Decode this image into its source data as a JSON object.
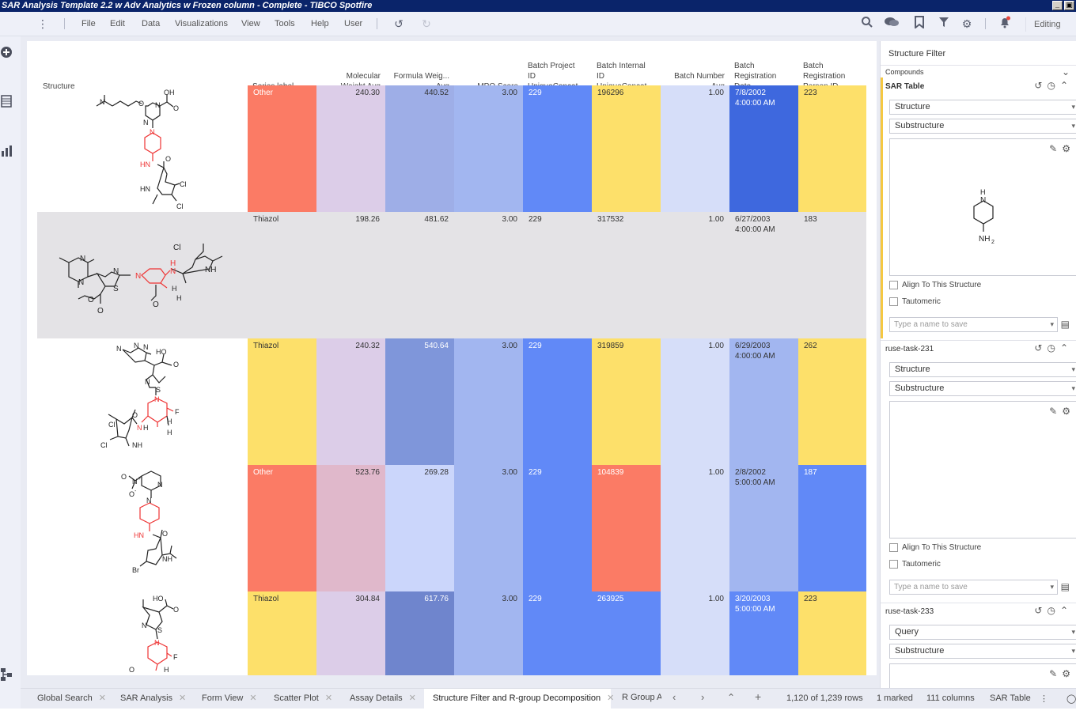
{
  "window": {
    "title": "SAR Analysis Template 2.2 w Adv Analytics w Frozen column - Complete - TIBCO Spotfire",
    "min_icon": "minimize-icon",
    "restore_icon": "restore-icon"
  },
  "menu": {
    "items": [
      "File",
      "Edit",
      "Data",
      "Visualizations",
      "View",
      "Tools",
      "Help",
      "User"
    ],
    "mode": "Editing"
  },
  "table": {
    "columns": [
      {
        "key": "structure",
        "label": [
          "Structure"
        ]
      },
      {
        "key": "series",
        "label": [
          "Series label"
        ]
      },
      {
        "key": "mw",
        "label": [
          "Molecular",
          "Weight  Avg"
        ]
      },
      {
        "key": "fw",
        "label": [
          "Formula Weig...",
          "Avg"
        ]
      },
      {
        "key": "mpo",
        "label": [
          "MPO Score"
        ]
      },
      {
        "key": "bpid",
        "label": [
          "Batch Project",
          "ID",
          "UniqueConcat..."
        ]
      },
      {
        "key": "biid",
        "label": [
          "Batch Internal",
          "ID",
          "UniqueConcat..."
        ]
      },
      {
        "key": "bn",
        "label": [
          "Batch Number",
          "Avg"
        ]
      },
      {
        "key": "brd",
        "label": [
          "Batch",
          "Registration",
          "Date"
        ]
      },
      {
        "key": "brp",
        "label": [
          "Batch",
          "Registration",
          "Person ID"
        ]
      }
    ],
    "rows": [
      {
        "series": "Other",
        "mw": "240.30",
        "fw": "440.52",
        "mpo": "3.00",
        "bpid": "229",
        "biid": "196296",
        "bn": "1.00",
        "date1": "7/8/2002",
        "date2": "4:00:00 AM",
        "person": "223"
      },
      {
        "series": "Thiazol",
        "mw": "198.26",
        "fw": "481.62",
        "mpo": "3.00",
        "bpid": "229",
        "biid": "317532",
        "bn": "1.00",
        "date1": "6/27/2003",
        "date2": "4:00:00 AM",
        "person": "183"
      },
      {
        "series": "Thiazol",
        "mw": "240.32",
        "fw": "540.64",
        "mpo": "3.00",
        "bpid": "229",
        "biid": "319859",
        "bn": "1.00",
        "date1": "6/29/2003",
        "date2": "4:00:00 AM",
        "person": "262"
      },
      {
        "series": "Other",
        "mw": "523.76",
        "fw": "269.28",
        "mpo": "3.00",
        "bpid": "229",
        "biid": "104839",
        "bn": "1.00",
        "date1": "2/8/2002",
        "date2": "5:00:00 AM",
        "person": "187"
      },
      {
        "series": "Thiazol",
        "mw": "304.84",
        "fw": "617.76",
        "mpo": "3.00",
        "bpid": "229",
        "biid": "263925",
        "bn": "1.00",
        "date1": "3/20/2003",
        "date2": "5:00:00 AM",
        "person": "223"
      }
    ],
    "atom_labels": {
      "r1": [
        "N",
        "O",
        "N",
        "N",
        "OH",
        "O",
        "N",
        "HN",
        "O",
        "HN",
        "Cl",
        "Cl"
      ],
      "r2": [
        "N",
        "N",
        "N",
        "S",
        "N",
        "O",
        "O",
        "Cl",
        "NH",
        "H",
        "N",
        "H",
        "H",
        "O"
      ],
      "r3": [
        "N",
        "N",
        "N",
        "HO",
        "O",
        "N",
        "S",
        "N",
        "F",
        "H",
        "H",
        "O",
        "N",
        "H",
        "Cl",
        "Cl",
        "NH"
      ],
      "r4": [
        "O",
        "N",
        "+",
        "O",
        "-",
        "N",
        "N",
        "HN",
        "O",
        "NH",
        "Br"
      ],
      "r5": [
        "HO",
        "O",
        "N",
        "S",
        "N",
        "F",
        "H",
        "O"
      ]
    }
  },
  "filter": {
    "title": "Structure Filter",
    "compounds_label": "Compounds",
    "section1_title": "SAR Table",
    "section2_title": "ruse-task-231",
    "section3_title": "ruse-task-233",
    "structure_label": "Structure",
    "substructure_label": "Substructure",
    "query_label": "Query",
    "align_label": "Align To This Structure",
    "tautomeric_label": "Tautomeric",
    "save_placeholder": "Type a name to save",
    "query_atoms": [
      "H",
      "N",
      "NH",
      "2"
    ]
  },
  "tabs": [
    "Global Search",
    "SAR Analysis",
    "Form View",
    "Scatter Plot",
    "Assay Details",
    "Structure Filter and R-group Decomposition",
    "R Group A"
  ],
  "status": {
    "rows": "1,120 of 1,239 rows",
    "marked": "1 marked",
    "columns": "111 columns",
    "table": "SAR Table"
  },
  "colors": {
    "red": "#fb7b65",
    "yellow": "#fde06a",
    "lav": "#dccde8",
    "lav2": "#e0b8cb",
    "b1": "#9eaee7",
    "b2": "#7f96da",
    "b3": "#6f85cd",
    "b4": "#a2b6f0",
    "b5": "#cbd6fb",
    "b6": "#6189f7",
    "b7": "#3e68de",
    "b8": "#d6def9",
    "gray": "#e4e3e6"
  }
}
